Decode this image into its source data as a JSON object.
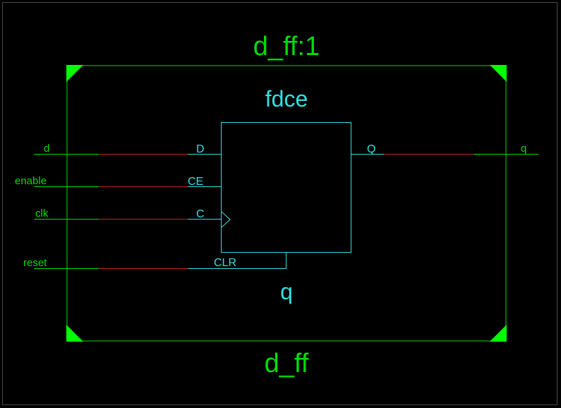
{
  "colors": {
    "background": "#000000",
    "frame": "#4a4a4a",
    "module_green": "#00dd00",
    "instance_cyan": "#33e0e0",
    "net_red": "#c02020",
    "corner_fill": "#00ff00"
  },
  "module": {
    "instance_name": "d_ff:1",
    "module_name": "d_ff"
  },
  "cell": {
    "type_name": "fdce",
    "instance_name": "q",
    "pins": {
      "d": "D",
      "ce": "CE",
      "c": "C",
      "clr": "CLR",
      "q": "Q"
    }
  },
  "ports": {
    "inputs": [
      "d",
      "enable",
      "clk",
      "reset"
    ],
    "outputs": [
      "q"
    ]
  }
}
